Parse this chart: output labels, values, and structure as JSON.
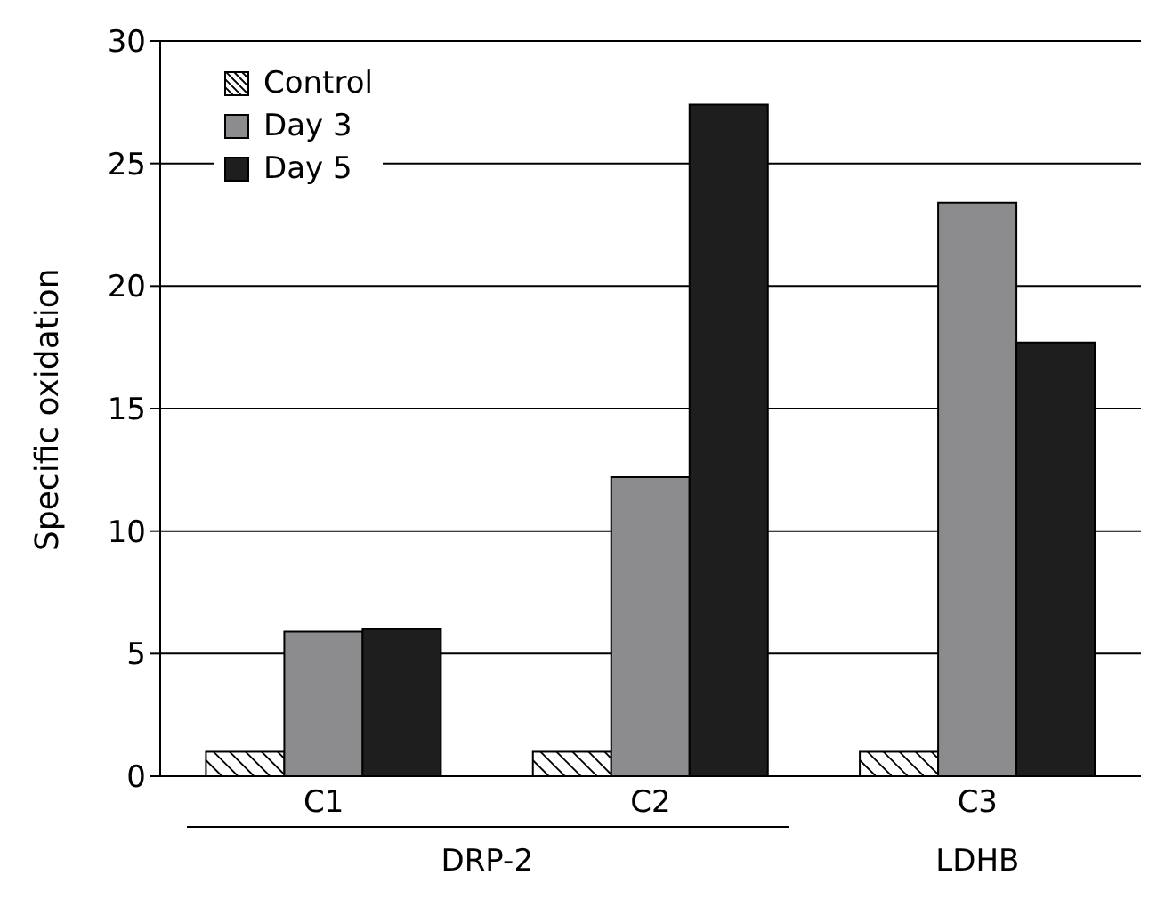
{
  "chart_data": {
    "type": "bar",
    "ylabel": "Specific oxidation",
    "categories": [
      "C1",
      "C2",
      "C3"
    ],
    "series": [
      {
        "name": "Control",
        "color": "#ffffff",
        "values": [
          1,
          1,
          1
        ]
      },
      {
        "name": "Day 3",
        "color": "#8c8c8e",
        "values": [
          5.9,
          12.2,
          23.4
        ]
      },
      {
        "name": "Day 5",
        "color": "#1e1e1e",
        "values": [
          6.0,
          27.4,
          17.7
        ]
      }
    ],
    "ylim": [
      0,
      30
    ],
    "yticks": [
      0,
      5,
      10,
      15,
      20,
      25,
      30
    ],
    "grid": "y",
    "legend": "top left",
    "annotations": [
      "DRP-2",
      "LDHB"
    ]
  }
}
